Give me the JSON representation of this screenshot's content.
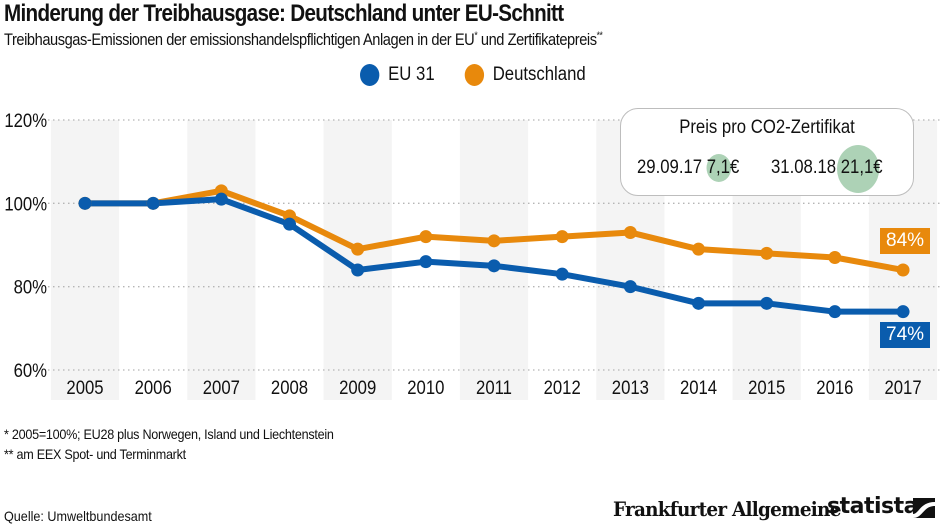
{
  "header": {
    "title": "Minderung der Treibhausgase: Deutschland unter EU-Schnitt",
    "subtitle_main": "Treibhausgas-Emissionen der emissionshandelspflichtigen Anlagen in der EU",
    "subtitle_sup1": "*",
    "subtitle_mid": " und Zertifikatepreis",
    "subtitle_sup2": "**"
  },
  "legend": [
    {
      "label": "EU 31",
      "color": "#0a5cad"
    },
    {
      "label": "Deutschland",
      "color": "#e8890c"
    }
  ],
  "price_box": {
    "title": "Preis pro CO2-Zertifikat",
    "entries": [
      {
        "date": "29.09.17",
        "value": "7,1€",
        "price": 7.1
      },
      {
        "date": "31.08.18",
        "value": "21,1€",
        "price": 21.1
      }
    ],
    "circle_color": "#9fcaa9"
  },
  "end_labels": {
    "deutschland": "84%",
    "eu": "74%"
  },
  "footnotes": {
    "note1": "*   2005=100%; EU28 plus Norwegen, Island und Liechtenstein",
    "note2": "** am EEX Spot- und Terminmarkt",
    "source": "Quelle: Umweltbundesamt"
  },
  "branding": {
    "publisher": "Frankfurter Allgemeine",
    "statista": "statista",
    "statista_icon": "statista-logo-icon"
  },
  "chart_data": {
    "type": "line",
    "title": "Minderung der Treibhausgase: Deutschland unter EU-Schnitt",
    "xlabel": "",
    "ylabel": "",
    "categories": [
      "2005",
      "2006",
      "2007",
      "2008",
      "2009",
      "2010",
      "2011",
      "2012",
      "2013",
      "2014",
      "2015",
      "2016",
      "2017"
    ],
    "series": [
      {
        "name": "EU 31",
        "color": "#0a5cad",
        "values": [
          100,
          100,
          101,
          95,
          84,
          86,
          85,
          83,
          80,
          76,
          76,
          74,
          74
        ]
      },
      {
        "name": "Deutschland",
        "color": "#e8890c",
        "values": [
          100,
          100,
          103,
          97,
          89,
          92,
          91,
          92,
          93,
          89,
          88,
          87,
          84
        ]
      }
    ],
    "ylim": [
      60,
      120
    ],
    "yticks": [
      60,
      80,
      100,
      120
    ],
    "ytick_labels": [
      "60%",
      "80%",
      "100%",
      "120%"
    ],
    "grid": true,
    "legend": "top-center",
    "band_color": "#f4f4f4",
    "annotations": [
      "84%",
      "74%"
    ]
  }
}
